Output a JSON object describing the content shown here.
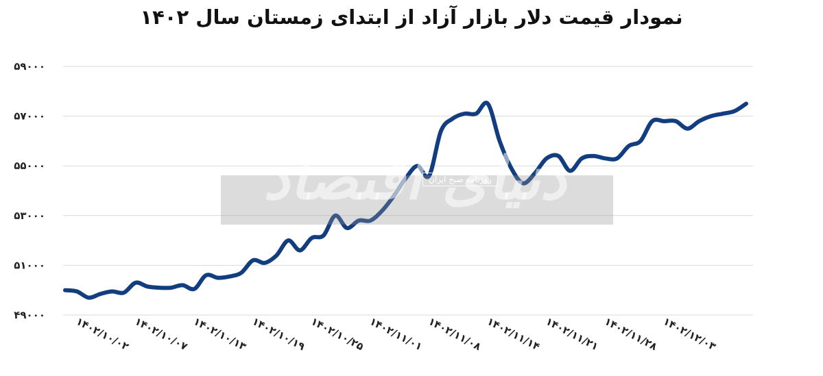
{
  "chart_data": {
    "type": "line",
    "title": "نمودار قیمت دلار بازار آزاد از ابتدای زمستان سال ۱۴۰۲",
    "xlabel": "",
    "ylabel": "",
    "ylim": [
      49000,
      59000
    ],
    "yticks": [
      49000,
      51000,
      53000,
      55000,
      57000,
      59000
    ],
    "ytick_labels": [
      "۴۹۰۰۰",
      "۵۱۰۰۰",
      "۵۳۰۰۰",
      "۵۵۰۰۰",
      "۵۷۰۰۰",
      "۵۹۰۰۰"
    ],
    "x_tick_labels": [
      "۱۴۰۲/۱۰/۰۲",
      "۱۴۰۲/۱۰/۰۷",
      "۱۴۰۲/۱۰/۱۳",
      "۱۴۰۲/۱۰/۱۹",
      "۱۴۰۲/۱۰/۲۵",
      "۱۴۰۲/۱۱/۰۱",
      "۱۴۰۲/۱۱/۰۸",
      "۱۴۰۲/۱۱/۱۴",
      "۱۴۰۲/۱۱/۲۱",
      "۱۴۰۲/۱۱/۲۸",
      "۱۴۰۲/۱۲/۰۳"
    ],
    "x_tick_index": [
      0,
      5,
      10,
      15,
      20,
      25,
      30,
      35,
      40,
      45,
      50
    ],
    "grid": true,
    "line_color": "#123e80",
    "series": [
      {
        "values": [
          50000,
          49950,
          49700,
          49850,
          49950,
          49900,
          50300,
          50150,
          50100,
          50100,
          50200,
          50050,
          50600,
          50500,
          50550,
          50700,
          51200,
          51100,
          51400,
          52000,
          51600,
          52100,
          52200,
          53000,
          52500,
          52800,
          52800,
          53200,
          53800,
          54500,
          55000,
          54600,
          56400,
          56900,
          57100,
          57100,
          57500,
          56000,
          54900,
          54300,
          54700,
          55300,
          55400,
          54800,
          55300,
          55400,
          55300,
          55300,
          55800,
          56000,
          56800,
          56800,
          56800,
          56500,
          56800,
          57000,
          57100,
          57200,
          57500
        ]
      }
    ]
  },
  "watermark": {
    "main": "دنیای اقتصاد",
    "sub": "روزنامه صبح ایران"
  }
}
